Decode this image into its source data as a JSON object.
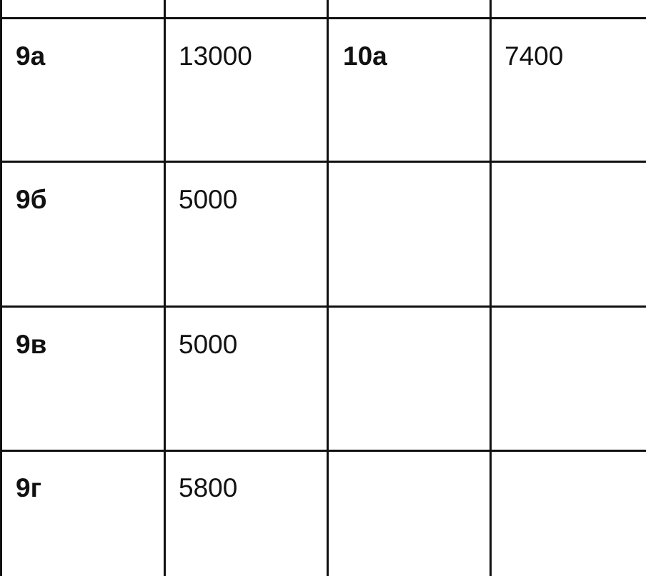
{
  "table": {
    "rows": [
      [
        "9а",
        "13000",
        "10а",
        "7400"
      ],
      [
        "9б",
        "5000",
        "",
        ""
      ],
      [
        "9в",
        "5000",
        "",
        ""
      ],
      [
        "9г",
        "5800",
        "",
        ""
      ]
    ]
  }
}
